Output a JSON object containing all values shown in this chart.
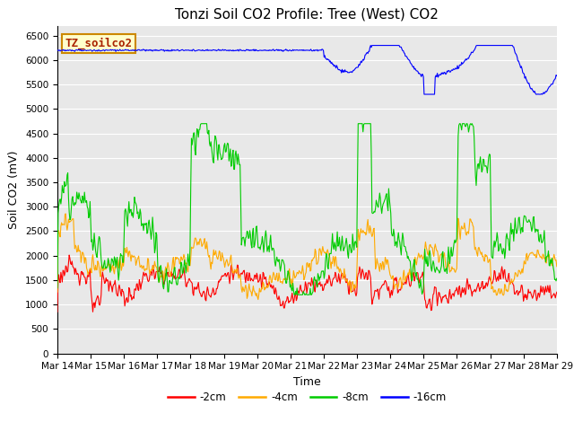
{
  "title": "Tonzi Soil CO2 Profile: Tree (West) CO2",
  "ylabel": "Soil CO2 (mV)",
  "xlabel": "Time",
  "ylim": [
    0,
    6700
  ],
  "yticks": [
    0,
    500,
    1000,
    1500,
    2000,
    2500,
    3000,
    3500,
    4000,
    4500,
    5000,
    5500,
    6000,
    6500
  ],
  "bg_color": "#e8e8e8",
  "legend_label": "TZ_soilco2",
  "legend_box_facecolor": "#ffffcc",
  "legend_box_edgecolor": "#cc8800",
  "series_labels": [
    "-2cm",
    "-4cm",
    "-8cm",
    "-16cm"
  ],
  "series_colors": [
    "#ff0000",
    "#ffaa00",
    "#00cc00",
    "#0000ff"
  ],
  "n_points": 720,
  "xtick_labels": [
    "Mar 14",
    "Mar 15",
    "Mar 16",
    "Mar 17",
    "Mar 18",
    "Mar 19",
    "Mar 20",
    "Mar 21",
    "Mar 22",
    "Mar 23",
    "Mar 24",
    "Mar 25",
    "Mar 26",
    "Mar 27",
    "Mar 28",
    "Mar 29"
  ],
  "line_width": 0.8,
  "title_fontsize": 11,
  "axis_fontsize": 9,
  "tick_fontsize": 7.5
}
